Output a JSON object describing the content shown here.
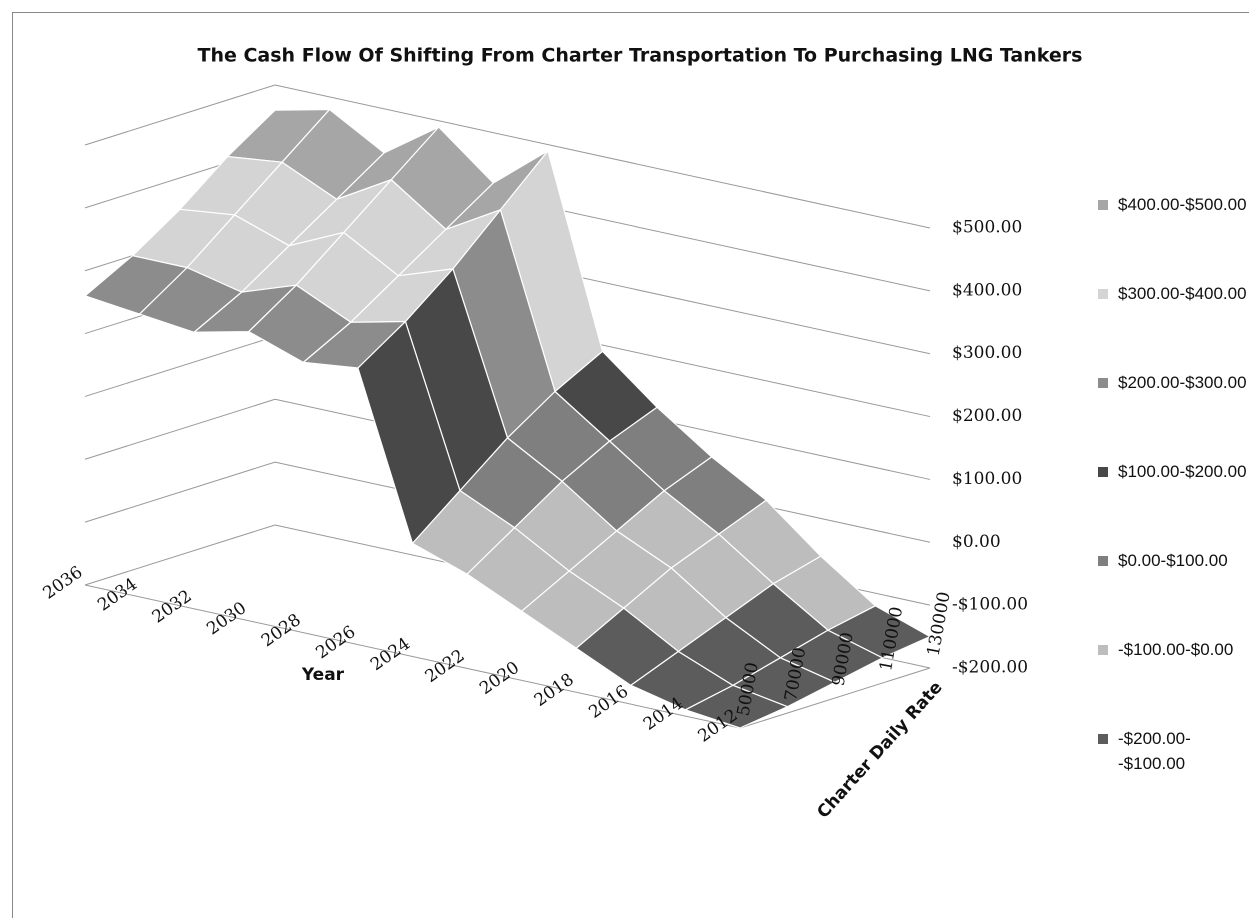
{
  "chart_data": {
    "type": "surface",
    "title": "The Cash Flow Of Shifting From Charter Transportation To Purchasing LNG Tankers",
    "x_label": "Year",
    "y_label": "Charter Daily Rate",
    "x": [
      "2012",
      "2014",
      "2016",
      "2018",
      "2020",
      "2022",
      "2024",
      "2026",
      "2028",
      "2030",
      "2032",
      "2034",
      "2036"
    ],
    "y": [
      "50000",
      "70000",
      "90000",
      "110000",
      "130000"
    ],
    "values": [
      [
        -200,
        -190,
        -175,
        -160,
        -150
      ],
      [
        -190,
        -175,
        -155,
        -135,
        -120
      ],
      [
        -170,
        -140,
        -110,
        -80,
        -60
      ],
      [
        -130,
        -90,
        -50,
        -20,
        10
      ],
      [
        -90,
        -50,
        -10,
        30,
        60
      ],
      [
        -50,
        0,
        50,
        90,
        120
      ],
      [
        -20,
        40,
        100,
        150,
        190
      ],
      [
        240,
        290,
        350,
        420,
        490
      ],
      [
        230,
        270,
        320,
        370,
        420
      ],
      [
        260,
        310,
        370,
        430,
        490
      ],
      [
        240,
        280,
        330,
        380,
        430
      ],
      [
        250,
        300,
        360,
        420,
        480
      ],
      [
        260,
        300,
        350,
        410,
        460
      ]
    ],
    "zlim": [
      -200,
      500
    ],
    "zticks": [
      {
        "value": -200,
        "label": "-$200.00"
      },
      {
        "value": -100,
        "label": "-$100.00"
      },
      {
        "value": 0,
        "label": "$0.00"
      },
      {
        "value": 100,
        "label": "$100.00"
      },
      {
        "value": 200,
        "label": "$200.00"
      },
      {
        "value": 300,
        "label": "$300.00"
      },
      {
        "value": 400,
        "label": "$400.00"
      },
      {
        "value": 500,
        "label": "$500.00"
      }
    ],
    "bands": [
      {
        "label": "$400.00-$500.00",
        "from": 400,
        "to": 500,
        "color": "#a6a6a6"
      },
      {
        "label": "$300.00-$400.00",
        "from": 300,
        "to": 400,
        "color": "#d4d4d4"
      },
      {
        "label": "$200.00-$300.00",
        "from": 200,
        "to": 300,
        "color": "#8c8c8c"
      },
      {
        "label": "$100.00-$200.00",
        "from": 100,
        "to": 200,
        "color": "#484848"
      },
      {
        "label": "$0.00-$100.00",
        "from": 0,
        "to": 100,
        "color": "#7f7f7f"
      },
      {
        "label": "-$100.00-$0.00",
        "from": -100,
        "to": 0,
        "color": "#bdbdbd"
      },
      {
        "label": "-$200.00--$100.00",
        "from": -200,
        "to": -100,
        "color": "#5c5c5c"
      }
    ]
  }
}
